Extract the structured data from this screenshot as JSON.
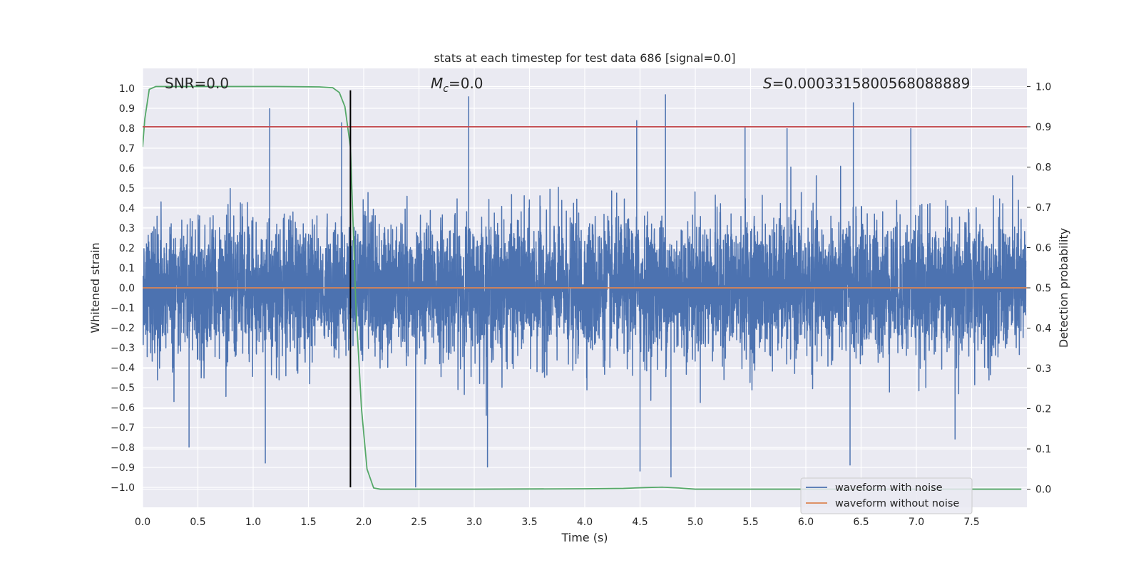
{
  "chart_data": {
    "type": "line",
    "title": "stats at each timestep for test data 686 [signal=0.0]",
    "xlabel": "Time (s)",
    "ylabel": "Whitened strain",
    "y2label": "Detection probability",
    "xlim": [
      0.0,
      8.0
    ],
    "ylim": [
      -1.1,
      1.1
    ],
    "y2lim": [
      -0.045,
      1.045
    ],
    "xticks": [
      0.0,
      0.5,
      1.0,
      1.5,
      2.0,
      2.5,
      3.0,
      3.5,
      4.0,
      4.5,
      5.0,
      5.5,
      6.0,
      6.5,
      7.0,
      7.5
    ],
    "xtick_labels": [
      "0.0",
      "0.5",
      "1.0",
      "1.5",
      "2.0",
      "2.5",
      "3.0",
      "3.5",
      "4.0",
      "4.5",
      "5.0",
      "5.5",
      "6.0",
      "6.5",
      "7.0",
      "7.5"
    ],
    "yticks": [
      1.0,
      0.9,
      0.8,
      0.7,
      0.6,
      0.5,
      0.4,
      0.3,
      0.2,
      0.1,
      0.0,
      -0.1,
      -0.2,
      -0.3,
      -0.4,
      -0.5,
      -0.6,
      -0.7,
      -0.8,
      -0.9,
      -1.0
    ],
    "ytick_labels": [
      "1.0",
      "0.9",
      "0.8",
      "0.7",
      "0.6",
      "0.5",
      "0.4",
      "0.3",
      "0.2",
      "0.1",
      "0.0",
      "−0.1",
      "−0.2",
      "−0.3",
      "−0.4",
      "−0.5",
      "−0.6",
      "−0.7",
      "−0.8",
      "−0.9",
      "−1.0"
    ],
    "y2ticks": [
      1.0,
      0.9,
      0.8,
      0.7,
      0.6,
      0.5,
      0.4,
      0.3,
      0.2,
      0.1,
      0.0
    ],
    "y2tick_labels": [
      "1.0",
      "0.9",
      "0.8",
      "0.7",
      "0.6",
      "0.5",
      "0.4",
      "0.3",
      "0.2",
      "0.1",
      "0.0"
    ],
    "annotations": {
      "snr": "SNR=0.0",
      "mc_symbol": "M",
      "mc_sub": "c",
      "mc_value": "=0.0",
      "s_symbol": "S",
      "s_value": "=0.0003315800568088889"
    },
    "legend": {
      "position": "lower right",
      "entries": [
        {
          "label": "waveform with noise",
          "color": "#4c72b0"
        },
        {
          "label": "waveform without noise",
          "color": "#dd8452"
        }
      ]
    },
    "series": [
      {
        "name": "waveform with noise",
        "axis": "left",
        "color": "#4c72b0",
        "description": "dense whitened noise time series sampled across 0–8 s; envelope mostly within ±0.6",
        "notable_peaks": [
          {
            "x": 1.15,
            "y": 0.9
          },
          {
            "x": 1.8,
            "y": 0.83
          },
          {
            "x": 2.95,
            "y": 0.96
          },
          {
            "x": 4.47,
            "y": 0.84
          },
          {
            "x": 4.73,
            "y": 0.97
          },
          {
            "x": 6.43,
            "y": 0.93
          },
          {
            "x": 5.45,
            "y": 0.81
          },
          {
            "x": 5.83,
            "y": 0.8
          },
          {
            "x": 6.95,
            "y": 0.8
          },
          {
            "x": 0.42,
            "y": -0.8
          },
          {
            "x": 1.11,
            "y": -0.88
          },
          {
            "x": 2.47,
            "y": -1.0
          },
          {
            "x": 3.12,
            "y": -0.9
          },
          {
            "x": 4.5,
            "y": -0.92
          },
          {
            "x": 4.78,
            "y": -0.95
          },
          {
            "x": 6.4,
            "y": -0.89
          },
          {
            "x": 7.35,
            "y": -0.76
          }
        ]
      },
      {
        "name": "waveform without noise",
        "axis": "left",
        "color": "#dd8452",
        "x": [
          0.0,
          8.0
        ],
        "y": [
          0.0,
          0.0
        ]
      },
      {
        "name": "detection probability",
        "axis": "right",
        "color": "#55a868",
        "x": [
          0.0,
          0.02,
          0.06,
          0.12,
          0.3,
          0.8,
          1.2,
          1.6,
          1.72,
          1.78,
          1.83,
          1.88,
          1.93,
          1.98,
          2.03,
          2.09,
          2.15,
          2.5,
          3.0,
          4.0,
          4.35,
          4.55,
          4.7,
          4.85,
          5.0,
          5.5,
          6.0,
          7.0,
          7.95
        ],
        "y": [
          0.85,
          0.92,
          0.993,
          1.0,
          1.0,
          1.0,
          1.0,
          0.999,
          0.997,
          0.985,
          0.95,
          0.85,
          0.45,
          0.2,
          0.05,
          0.003,
          0.0,
          0.0,
          0.0,
          0.001,
          0.002,
          0.004,
          0.005,
          0.003,
          0.0,
          0.0,
          0.0,
          0.0,
          0.0
        ]
      },
      {
        "name": "threshold",
        "axis": "right",
        "color": "#c44e52",
        "x": [
          0.0,
          8.0
        ],
        "y": [
          0.9,
          0.9
        ]
      },
      {
        "name": "detection time",
        "axis": "left",
        "color": "#000000",
        "x": [
          1.88,
          1.88
        ],
        "y": [
          -1.0,
          0.99
        ]
      }
    ]
  }
}
